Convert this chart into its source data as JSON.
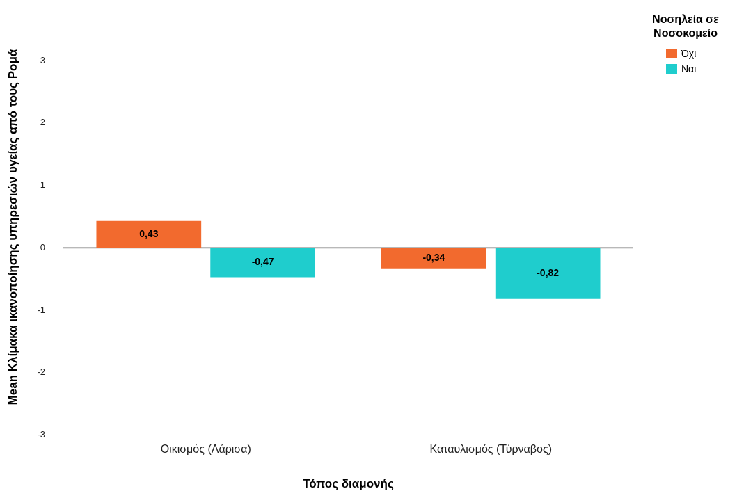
{
  "chart_data": {
    "type": "bar",
    "xlabel": "Τόπος διαμονής",
    "ylabel": "Mean Κλίμακα ικανοποίησης υπηρεσιών υγείας από τους Ρομά",
    "legend_title": "Νοσηλεία σε Νοσοκομείο",
    "categories": [
      "Οικισμός (Λάρισα)",
      "Καταυλισμός (Τύρναβος)"
    ],
    "series": [
      {
        "name": "Όχι",
        "color": "#f26a2e",
        "values": [
          0.43,
          -0.34
        ],
        "value_labels": [
          "0,43",
          "-0,34"
        ]
      },
      {
        "name": "Ναι",
        "color": "#1fcdcd",
        "values": [
          -0.47,
          -0.82
        ],
        "value_labels": [
          "-0,47",
          "-0,82"
        ]
      }
    ],
    "ylim": [
      -3,
      3.66
    ],
    "yticks": [
      -3,
      -2,
      -1,
      0,
      1,
      2,
      3
    ],
    "grid": false,
    "legend": "top right",
    "ref_lines": [
      {
        "axis": "y",
        "value": 0,
        "color": "#a0a0a0"
      }
    ]
  }
}
